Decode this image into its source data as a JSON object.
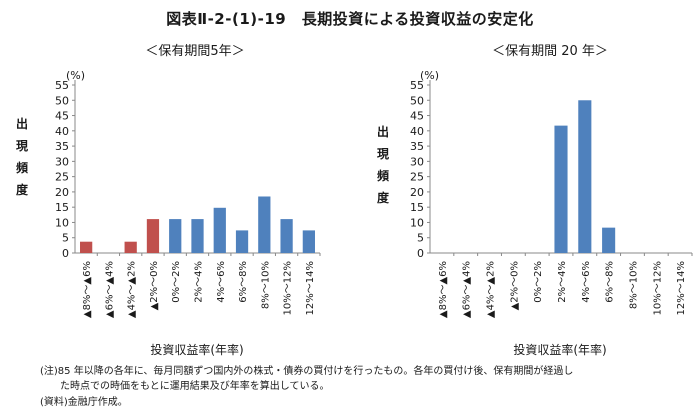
{
  "title": "図表Ⅱ-2-(1)-19　長期投資による投資収益の安定化",
  "notes": [
    "(注)85 年以降の各年に、毎月同額ずつ国内外の株式・債券の買付けを行ったもの。各年の買付け後、保有期間が経過し",
    "　　た時点での時価をもとに運用結果及び年率を算出している。",
    "(資料)金融庁作成。"
  ],
  "colors": {
    "negative": "#c0504d",
    "positive": "#4f81bd",
    "axis": "#888888"
  },
  "chart_data": [
    {
      "type": "bar",
      "title": "＜保有期間5年＞",
      "ylabel": "出\n現\n頻\n度",
      "yunit": "(%)",
      "xlabel": "投資収益率(年率)",
      "ylim": [
        0,
        55
      ],
      "yticks": [
        0,
        5,
        10,
        15,
        20,
        25,
        30,
        35,
        40,
        45,
        50,
        55
      ],
      "categories": [
        "▲8%～▲6%",
        "▲6%～▲4%",
        "▲4%～▲2%",
        "▲2%～0%",
        "0%～2%",
        "2%～4%",
        "4%～6%",
        "6%～8%",
        "8%～10%",
        "10%～12%",
        "12%～14%"
      ],
      "values": [
        3.7,
        0,
        3.7,
        11.1,
        11.1,
        11.1,
        14.8,
        7.4,
        18.5,
        11.1,
        7.4
      ],
      "negative_count": 4
    },
    {
      "type": "bar",
      "title": "＜保有期間 20 年＞",
      "ylabel": "出\n現\n頻\n度",
      "yunit": "(%)",
      "xlabel": "投資収益率(年率)",
      "ylim": [
        0,
        55
      ],
      "yticks": [
        0,
        5,
        10,
        15,
        20,
        25,
        30,
        35,
        40,
        45,
        50,
        55
      ],
      "categories": [
        "▲8%～▲6%",
        "▲6%～▲4%",
        "▲4%～▲2%",
        "▲2%～0%",
        "0%～2%",
        "2%～4%",
        "4%～6%",
        "6%～8%",
        "8%～10%",
        "10%～12%",
        "12%～14%"
      ],
      "values": [
        0,
        0,
        0,
        0,
        0,
        41.7,
        50.0,
        8.3,
        0,
        0,
        0
      ],
      "negative_count": 4
    }
  ]
}
